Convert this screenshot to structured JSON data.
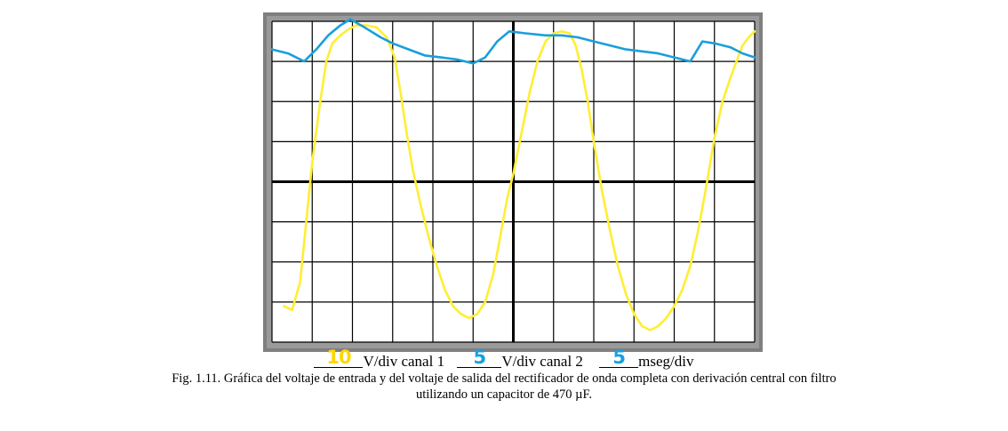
{
  "chart_data": {
    "type": "line",
    "grid": true,
    "grid_divisions": {
      "x": 12,
      "y": 8
    },
    "series": [
      {
        "color": "#ffee33",
        "points": [
          [
            0.3,
            -3.1
          ],
          [
            0.5,
            -3.2
          ],
          [
            0.7,
            -2.5
          ],
          [
            0.85,
            -1.0
          ],
          [
            1.0,
            0.5
          ],
          [
            1.2,
            2.0
          ],
          [
            1.35,
            3.0
          ],
          [
            1.5,
            3.45
          ],
          [
            1.7,
            3.65
          ],
          [
            1.9,
            3.8
          ],
          [
            2.1,
            3.9
          ],
          [
            2.35,
            3.9
          ],
          [
            2.6,
            3.85
          ],
          [
            2.85,
            3.6
          ],
          [
            3.05,
            3.1
          ],
          [
            3.2,
            2.2
          ],
          [
            3.35,
            1.2
          ],
          [
            3.5,
            0.3
          ],
          [
            3.7,
            -0.6
          ],
          [
            3.9,
            -1.4
          ],
          [
            4.1,
            -2.1
          ],
          [
            4.3,
            -2.7
          ],
          [
            4.5,
            -3.1
          ],
          [
            4.7,
            -3.3
          ],
          [
            4.9,
            -3.4
          ],
          [
            5.1,
            -3.3
          ],
          [
            5.3,
            -3.0
          ],
          [
            5.5,
            -2.3
          ],
          [
            5.65,
            -1.5
          ],
          [
            5.85,
            -0.4
          ],
          [
            6.0,
            0.2
          ],
          [
            6.2,
            1.2
          ],
          [
            6.4,
            2.2
          ],
          [
            6.6,
            3.0
          ],
          [
            6.8,
            3.5
          ],
          [
            7.0,
            3.7
          ],
          [
            7.2,
            3.75
          ],
          [
            7.4,
            3.7
          ],
          [
            7.55,
            3.4
          ],
          [
            7.7,
            2.8
          ],
          [
            7.85,
            2.0
          ],
          [
            8.0,
            1.0
          ],
          [
            8.2,
            -0.2
          ],
          [
            8.4,
            -1.2
          ],
          [
            8.6,
            -2.1
          ],
          [
            8.8,
            -2.8
          ],
          [
            9.0,
            -3.3
          ],
          [
            9.2,
            -3.6
          ],
          [
            9.4,
            -3.7
          ],
          [
            9.6,
            -3.6
          ],
          [
            9.8,
            -3.4
          ],
          [
            10.0,
            -3.1
          ],
          [
            10.2,
            -2.7
          ],
          [
            10.4,
            -2.1
          ],
          [
            10.6,
            -1.2
          ],
          [
            10.8,
            -0.1
          ],
          [
            11.0,
            1.1
          ],
          [
            11.2,
            2.0
          ],
          [
            11.4,
            2.6
          ],
          [
            11.55,
            3.0
          ],
          [
            11.7,
            3.4
          ],
          [
            11.85,
            3.6
          ],
          [
            12.0,
            3.75
          ]
        ]
      },
      {
        "color": "#1a9fdb",
        "points": [
          [
            0.0,
            3.3
          ],
          [
            0.4,
            3.2
          ],
          [
            0.8,
            3.0
          ],
          [
            1.1,
            3.3
          ],
          [
            1.4,
            3.65
          ],
          [
            1.7,
            3.9
          ],
          [
            1.95,
            4.05
          ],
          [
            2.3,
            3.85
          ],
          [
            2.7,
            3.6
          ],
          [
            3.0,
            3.45
          ],
          [
            3.4,
            3.3
          ],
          [
            3.8,
            3.15
          ],
          [
            4.2,
            3.1
          ],
          [
            4.6,
            3.05
          ],
          [
            5.0,
            2.95
          ],
          [
            5.3,
            3.1
          ],
          [
            5.6,
            3.5
          ],
          [
            5.9,
            3.75
          ],
          [
            6.3,
            3.7
          ],
          [
            6.8,
            3.65
          ],
          [
            7.2,
            3.65
          ],
          [
            7.6,
            3.6
          ],
          [
            8.0,
            3.5
          ],
          [
            8.4,
            3.4
          ],
          [
            8.8,
            3.3
          ],
          [
            9.2,
            3.25
          ],
          [
            9.6,
            3.2
          ],
          [
            10.0,
            3.1
          ],
          [
            10.4,
            3.0
          ],
          [
            10.7,
            3.5
          ],
          [
            11.0,
            3.45
          ],
          [
            11.4,
            3.35
          ],
          [
            11.7,
            3.2
          ],
          [
            12.0,
            3.1
          ]
        ]
      }
    ]
  },
  "settings": {
    "ch1_value": "10",
    "ch1_color": "#ffd700",
    "ch1_unit": "V/div canal 1",
    "ch2_value": "5",
    "ch2_color": "#1a9fdb",
    "ch2_unit": "V/div canal 2",
    "time_value": "5",
    "time_color": "#1a9fdb",
    "time_unit": "mseg/div"
  },
  "caption": {
    "line1": "Fig. 1.11. Gráfica del voltaje de entrada y del voltaje de salida del rectificador de onda completa con derivación central con filtro",
    "line2": "utilizando un capacitor de 470 µF."
  }
}
